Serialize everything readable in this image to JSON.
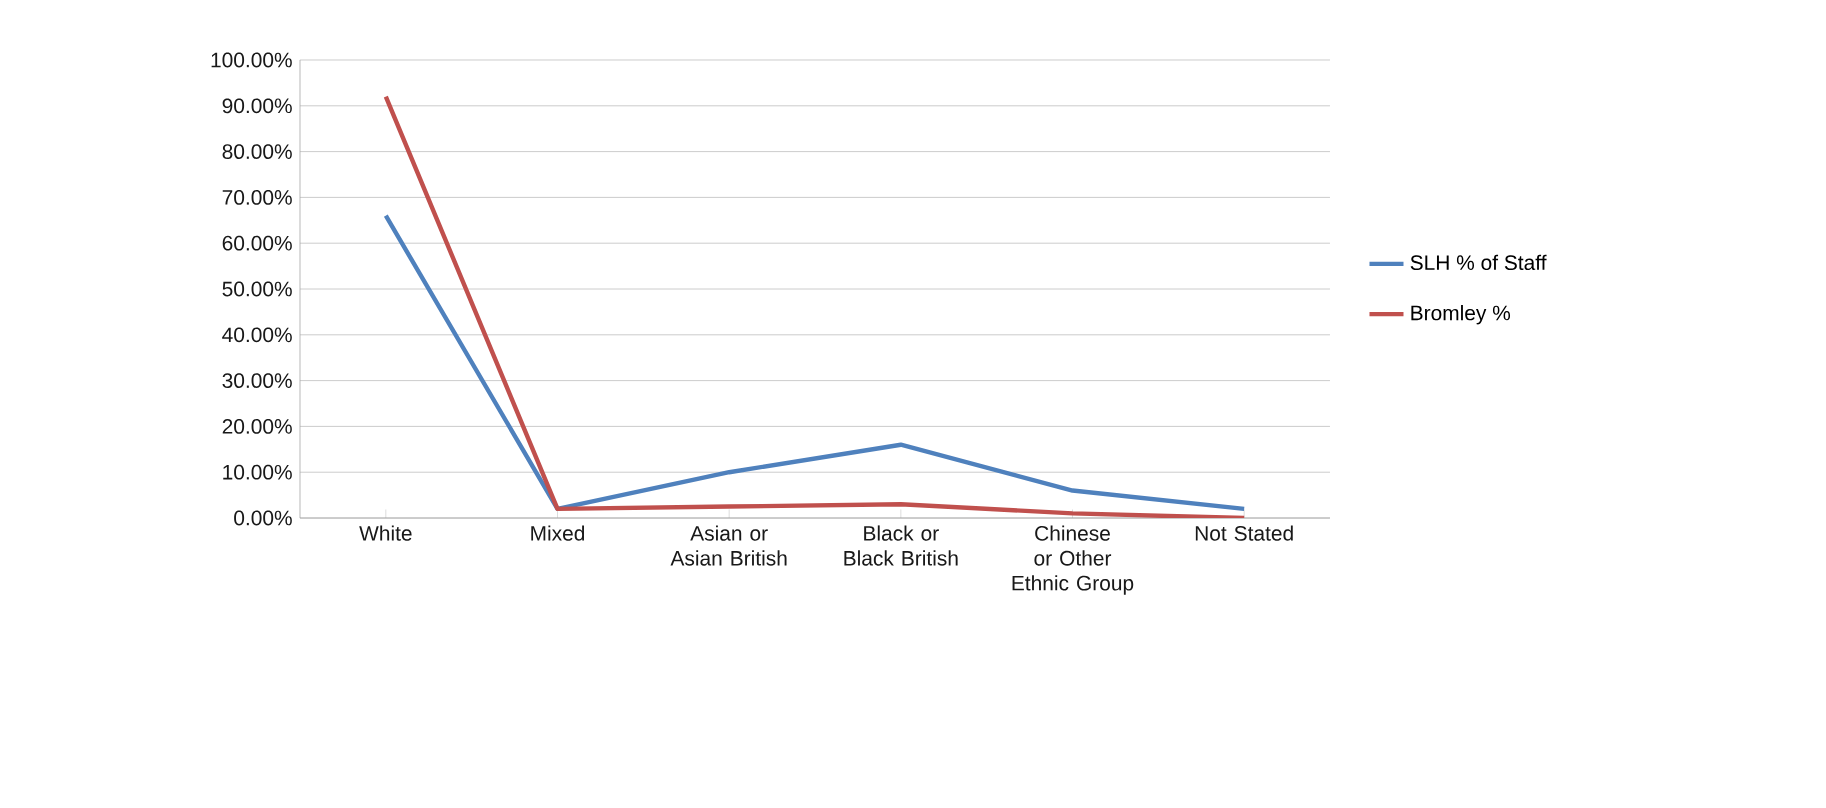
{
  "chart_data": {
    "type": "line",
    "categories": [
      "White",
      "Mixed",
      "Asian or Asian British",
      "Black or Black British",
      "Chinese or Other Ethnic Group",
      "Not Stated"
    ],
    "series": [
      {
        "name": "SLH % of Staff",
        "color": "#4f81bd",
        "values": [
          66,
          2,
          10,
          16,
          6,
          2
        ]
      },
      {
        "name": "Bromley %",
        "color": "#c0504d",
        "values": [
          92,
          2,
          2.5,
          3,
          1,
          0
        ]
      }
    ],
    "ylim": [
      0,
      100
    ],
    "yticks": [
      {
        "value": 0,
        "label": "0.00%"
      },
      {
        "value": 10,
        "label": "10.00%"
      },
      {
        "value": 20,
        "label": "20.00%"
      },
      {
        "value": 30,
        "label": "30.00%"
      },
      {
        "value": 40,
        "label": "40.00%"
      },
      {
        "value": 50,
        "label": "50.00%"
      },
      {
        "value": 60,
        "label": "60.00%"
      },
      {
        "value": 70,
        "label": "70.00%"
      },
      {
        "value": 80,
        "label": "80.00%"
      },
      {
        "value": 90,
        "label": "90.00%"
      },
      {
        "value": 100,
        "label": "100.00%"
      }
    ],
    "grid": "y",
    "legend": "right",
    "marker": "none",
    "line_style": "solid"
  }
}
